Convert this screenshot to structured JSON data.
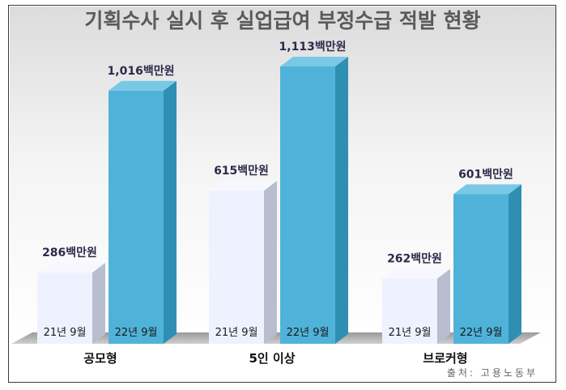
{
  "chart_data": {
    "type": "bar",
    "title": "기획수사 실시 후 실업급여 부정수급 적발 현황",
    "categories": [
      "공모형",
      "5인 이상",
      "브로커형"
    ],
    "series": [
      {
        "name": "21년 9월",
        "values": [
          286,
          615,
          262
        ],
        "labels": [
          "286백만원",
          "615백만원",
          "262백만원"
        ]
      },
      {
        "name": "22년 9월",
        "values": [
          1016,
          1113,
          601
        ],
        "labels": [
          "1,016백만원",
          "1,113백만원",
          "601백만원"
        ]
      }
    ],
    "unit": "백만원",
    "ylim": [
      0,
      1200
    ],
    "grid": false,
    "source": "출처: 고용노동부",
    "colors": {
      "series1_front": "#eef2ff",
      "series1_side": "#b9bdd0",
      "series1_top": "#f7f8ff",
      "series2_front": "#4fb3d9",
      "series2_side": "#2f8fb3",
      "series2_top": "#79c8e6"
    }
  }
}
